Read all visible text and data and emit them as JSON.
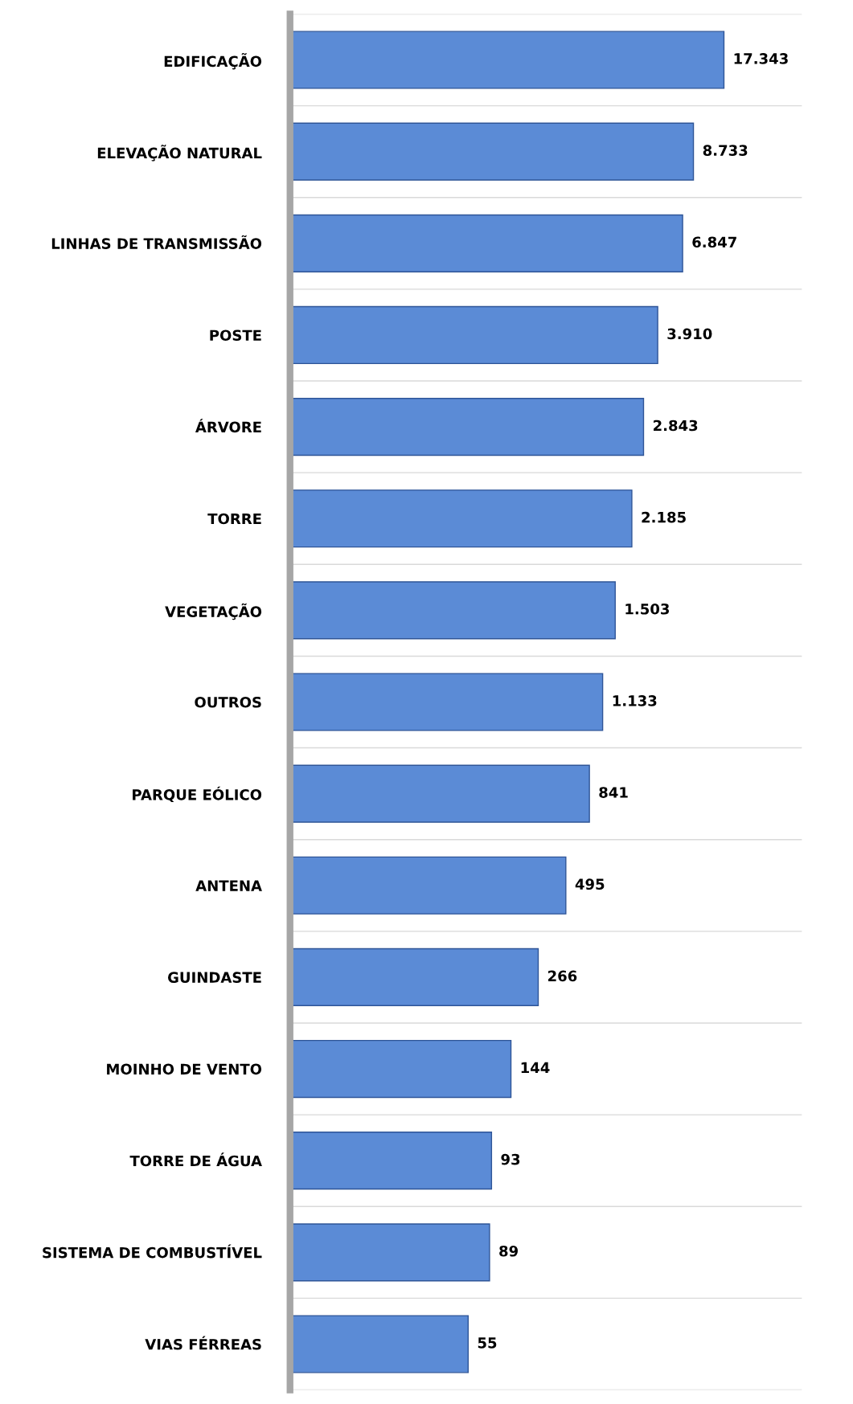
{
  "chart_data": {
    "type": "bar",
    "orientation": "horizontal",
    "log": "x",
    "xlim": [
      1,
      100000
    ],
    "tick_labels": "y",
    "grid": "y",
    "color": "#5b8bd6",
    "categories": [
      "EDIFICAÇÃO",
      "ELEVAÇÃO NATURAL",
      "LINHAS DE TRANSMISSÃO",
      "POSTE",
      "ÁRVORE",
      "TORRE",
      "VEGETAÇÃO",
      "OUTROS",
      "PARQUE EÓLICO",
      "ANTENA",
      "GUINDASTE",
      "MOINHO DE VENTO",
      "TORRE DE ÁGUA",
      "SISTEMA DE COMBUSTÍVEL",
      "VIAS FÉRREAS"
    ],
    "values": [
      17343,
      8733,
      6847,
      3910,
      2843,
      2185,
      1503,
      1133,
      841,
      495,
      266,
      144,
      93,
      89,
      55
    ],
    "value_labels": [
      "17.343",
      "8.733",
      "6.847",
      "3.910",
      "2.843",
      "2.185",
      "1.503",
      "1.133",
      "841",
      "495",
      "266",
      "144",
      "93",
      "89",
      "55"
    ]
  }
}
